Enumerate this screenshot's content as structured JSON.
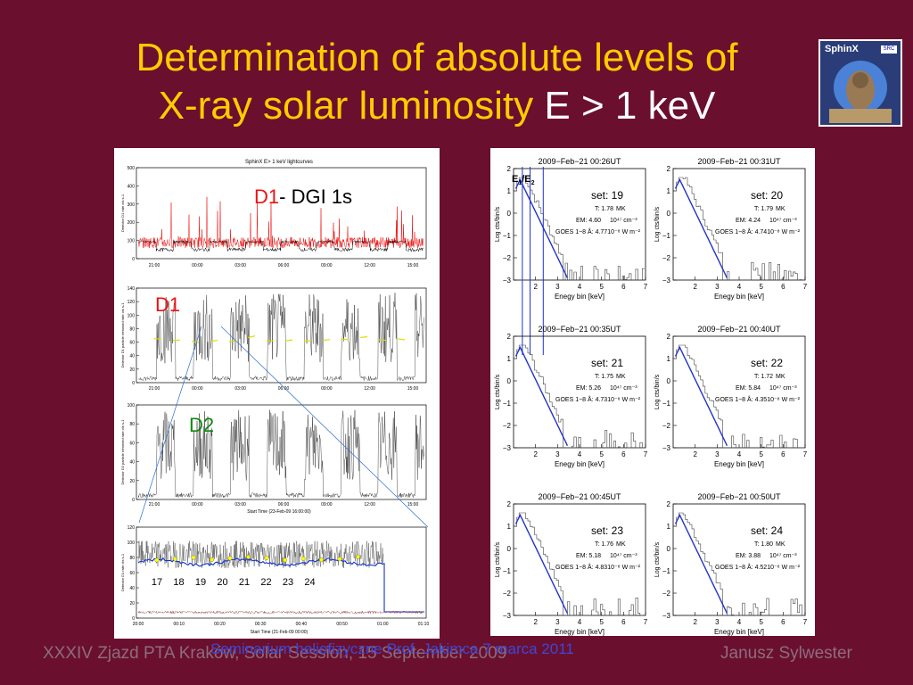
{
  "title": {
    "line1": "Determination of absolute levels of",
    "line2": "X-ray solar luminosity",
    "energy": "E > 1 keV"
  },
  "logo": {
    "text": "SphinX",
    "badge": "SRC"
  },
  "left_panel": {
    "top_chart_title": "SphinX E> 1 keV lightcurves",
    "label_d1_dgi": "D1",
    "label_dgi": "- DGI 1s",
    "label_d1": "D1",
    "label_d2": "D2",
    "x_ticks_top": [
      "21:00",
      "00:00",
      "03:00",
      "06:00",
      "09:00",
      "12:00",
      "15:00"
    ],
    "x_ticks_bottom": [
      "20:00",
      "00:10",
      "00:20",
      "00:30",
      "00:40",
      "00:50",
      "01:00",
      "01:10"
    ],
    "x_axis_label": "Start Time (23-Feb-09 16:00:00)",
    "x_axis_label_bottom": "Start Time (21-Feb-09 00:00)",
    "y_label_1": "Detector D1 rate cts s-1",
    "y_label_2": "Detector D1 particle removed rate cts s-1",
    "y_label_3": "Detector D2 particle removed rate cts s-1",
    "y_label_4": "Detector D1 rate cts s-1",
    "y_ticks_1": [
      "0",
      "100",
      "200",
      "300",
      "400",
      "500"
    ],
    "y_ticks_2": [
      "0",
      "20",
      "40",
      "60",
      "80",
      "100",
      "120",
      "140"
    ],
    "y_ticks_4": [
      "0",
      "20",
      "40",
      "60",
      "80",
      "100",
      "120"
    ],
    "set_labels": [
      "17",
      "18",
      "19",
      "20",
      "21",
      "22",
      "23",
      "24"
    ]
  },
  "chart_data": {
    "type": "line",
    "title": "",
    "xlabel": "Enegy bin [keV]",
    "ylabel": "Log cts/bin/s",
    "xlim": [
      1,
      7
    ],
    "ylim": [
      -3,
      2
    ],
    "x_ticks": [
      "2",
      "3",
      "4",
      "5",
      "6",
      "7"
    ],
    "y_ticks": [
      "−3",
      "−2",
      "−1",
      "0",
      "1",
      "2"
    ],
    "energy_markers": {
      "e1": "E",
      "e1_sub": "1",
      "sep": "/E",
      "e2_sub": "2"
    },
    "panels": [
      {
        "time": "2009−Feb−21 00:26UT",
        "set": "set:  19",
        "T": "T:    1.78",
        "T_unit": "MK",
        "EM": "EM:   4.60",
        "EM_unit": "10⁴⁷ cm⁻³",
        "goes": "GOES 1−8 Å:   4.7710⁻⁸ W m⁻²"
      },
      {
        "time": "2009−Feb−21 00:31UT",
        "set": "set:  20",
        "T": "T:    1.79",
        "T_unit": "MK",
        "EM": "EM:   4.24",
        "EM_unit": "10⁴⁷ cm⁻³",
        "goes": "GOES 1−8 Å:   4.7410⁻⁸ W m⁻²"
      },
      {
        "time": "2009−Feb−21 00:35UT",
        "set": "set:  21",
        "T": "T:    1.75",
        "T_unit": "MK",
        "EM": "EM:   5.26",
        "EM_unit": "10⁴⁷ cm⁻³",
        "goes": "GOES 1−8 Å:   4.7310⁻⁸ W m⁻²"
      },
      {
        "time": "2009−Feb−21 00:40UT",
        "set": "set:  22",
        "T": "T:    1.72",
        "T_unit": "MK",
        "EM": "EM:   5.84",
        "EM_unit": "10⁴⁷ cm⁻³",
        "goes": "GOES 1−8 Å:   4.3510⁻⁸ W m⁻²"
      },
      {
        "time": "2009−Feb−21 00:45UT",
        "set": "set:  23",
        "T": "T:    1.76",
        "T_unit": "MK",
        "EM": "EM:   5.18",
        "EM_unit": "10⁴⁷ cm⁻³",
        "goes": "GOES 1−8 Å:   4.8310⁻⁸ W m⁻²"
      },
      {
        "time": "2009−Feb−21 00:50UT",
        "set": "set:  24",
        "T": "T:    1.80",
        "T_unit": "MK",
        "EM": "EM:   3.88",
        "EM_unit": "10⁴⁷ cm⁻³",
        "goes": "GOES 1−8 Å:   4.5210⁻⁸ W m⁻²"
      }
    ]
  },
  "footer": {
    "left": "XXXIV Zjazd PTA  Kraków, Solar Session, 15 September 2009",
    "right": "Janusz Sylwester",
    "seminar": "Seminarium heliofizyczne Prof. Jakimca   7 marca 2011"
  },
  "colors": {
    "background": "#6b0f2e",
    "title": "#ffcc00",
    "fit": "#2233cc",
    "flare": "#ee1111",
    "d2_label": "#118811"
  }
}
